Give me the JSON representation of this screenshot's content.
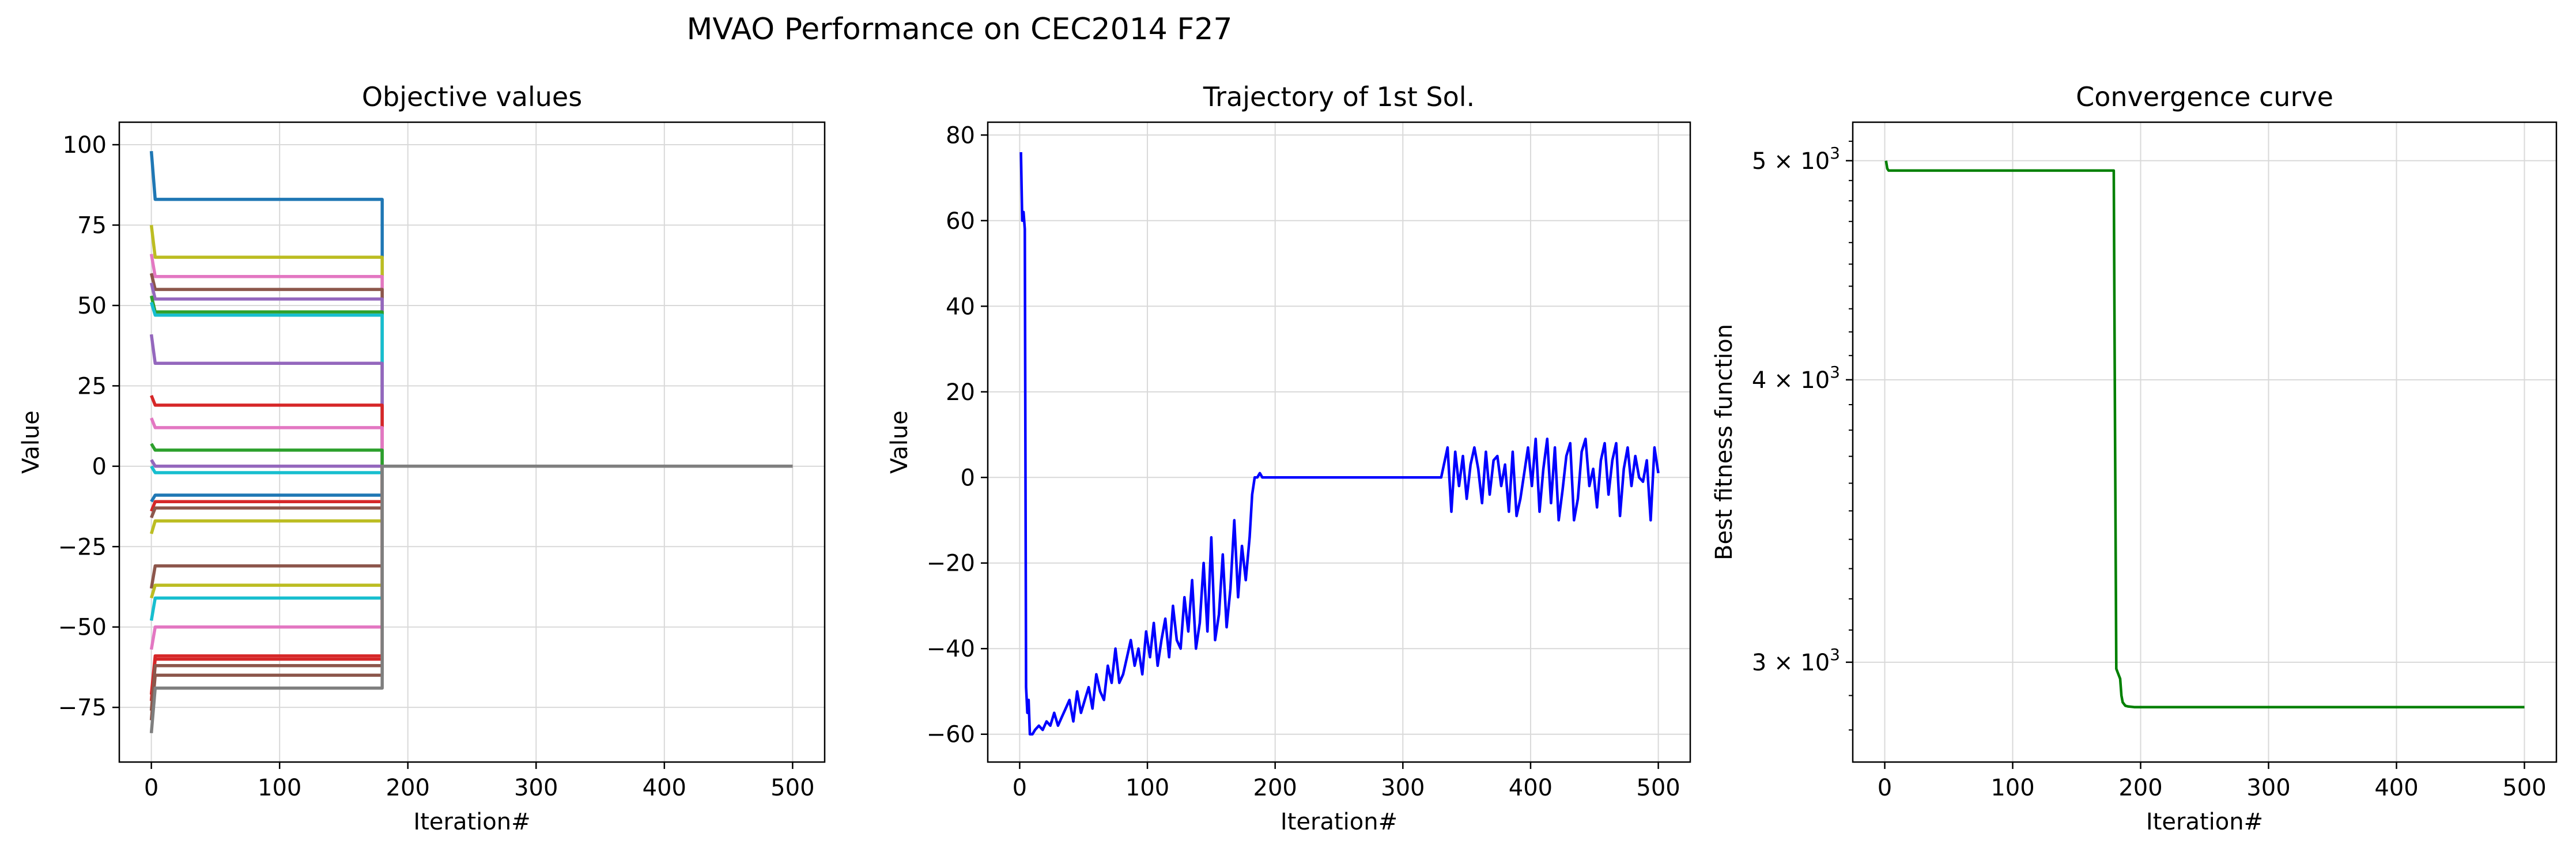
{
  "figure": {
    "title": "MVAO Performance on CEC2014 F27"
  },
  "chart_data": [
    {
      "type": "line",
      "title": "Objective values",
      "xlabel": "Iteration#",
      "ylabel": "Value",
      "xlim": [
        -25,
        525
      ],
      "ylim": [
        -92,
        107
      ],
      "xticks": [
        0,
        100,
        200,
        300,
        400,
        500
      ],
      "yticks": [
        -75,
        -50,
        -25,
        0,
        25,
        50,
        75,
        100
      ],
      "grid": true,
      "switch_iteration": 180,
      "final_value": 0,
      "end_iteration": 500,
      "series": [
        {
          "start": 98,
          "plateau": 83,
          "color": "#1f77b4"
        },
        {
          "start": 75,
          "plateau": 65,
          "color": "#bcbd22"
        },
        {
          "start": 66,
          "plateau": 59,
          "color": "#e377c2"
        },
        {
          "start": 60,
          "plateau": 55,
          "color": "#8c564b"
        },
        {
          "start": 57,
          "plateau": 52,
          "color": "#9467bd"
        },
        {
          "start": 53,
          "plateau": 48,
          "color": "#2ca02c"
        },
        {
          "start": 51,
          "plateau": 47,
          "color": "#17becf"
        },
        {
          "start": 41,
          "plateau": 32,
          "color": "#9467bd"
        },
        {
          "start": 22,
          "plateau": 19,
          "color": "#d62728"
        },
        {
          "start": 15,
          "plateau": 12,
          "color": "#e377c2"
        },
        {
          "start": 7,
          "plateau": 5,
          "color": "#2ca02c"
        },
        {
          "start": 2,
          "plateau": 0,
          "color": "#9467bd"
        },
        {
          "start": 0,
          "plateau": -2,
          "color": "#17becf"
        },
        {
          "start": -11,
          "plateau": -9,
          "color": "#1f77b4"
        },
        {
          "start": -14,
          "plateau": -11,
          "color": "#d62728"
        },
        {
          "start": -16,
          "plateau": -13,
          "color": "#8c564b"
        },
        {
          "start": -21,
          "plateau": -17,
          "color": "#bcbd22"
        },
        {
          "start": -38,
          "plateau": -31,
          "color": "#8c564b"
        },
        {
          "start": -41,
          "plateau": -37,
          "color": "#bcbd22"
        },
        {
          "start": -48,
          "plateau": -41,
          "color": "#17becf"
        },
        {
          "start": -57,
          "plateau": -50,
          "color": "#e377c2"
        },
        {
          "start": -71,
          "plateau": -59,
          "color": "#d62728"
        },
        {
          "start": -73,
          "plateau": -60,
          "color": "#d62728"
        },
        {
          "start": -76,
          "plateau": -62,
          "color": "#8c564b"
        },
        {
          "start": -79,
          "plateau": -65,
          "color": "#8c564b"
        },
        {
          "start": -83,
          "plateau": -69,
          "color": "#7f7f7f"
        }
      ]
    },
    {
      "type": "line",
      "title": "Trajectory of 1st Sol.",
      "xlabel": "Iteration#",
      "ylabel": "Value",
      "xlim": [
        -25,
        525
      ],
      "ylim": [
        -66.5,
        83
      ],
      "xticks": [
        0,
        100,
        200,
        300,
        400,
        500
      ],
      "yticks": [
        -60,
        -40,
        -20,
        0,
        20,
        40,
        60,
        80
      ],
      "grid": true,
      "color": "#0000ff",
      "x": [
        1,
        2,
        3,
        4,
        5,
        6,
        7,
        8,
        10,
        12,
        15,
        18,
        21,
        24,
        27,
        30,
        33,
        36,
        39,
        42,
        45,
        48,
        51,
        54,
        57,
        60,
        63,
        66,
        69,
        72,
        75,
        78,
        81,
        84,
        87,
        90,
        93,
        96,
        99,
        102,
        105,
        108,
        111,
        114,
        117,
        120,
        123,
        126,
        129,
        132,
        135,
        138,
        141,
        144,
        147,
        150,
        153,
        156,
        159,
        162,
        165,
        168,
        171,
        174,
        177,
        180,
        182,
        184,
        186,
        188,
        190,
        195,
        200,
        210,
        220,
        230,
        240,
        250,
        260,
        270,
        280,
        290,
        300,
        310,
        320,
        330,
        335,
        338,
        341,
        344,
        347,
        350,
        353,
        356,
        359,
        362,
        365,
        368,
        371,
        374,
        377,
        380,
        383,
        386,
        389,
        392,
        395,
        398,
        401,
        404,
        407,
        410,
        413,
        416,
        419,
        422,
        425,
        428,
        431,
        434,
        437,
        440,
        443,
        446,
        449,
        452,
        455,
        458,
        461,
        464,
        467,
        470,
        473,
        476,
        479,
        482,
        485,
        488,
        491,
        494,
        497,
        500
      ],
      "y": [
        76,
        60,
        62,
        58,
        -49,
        -55,
        -52,
        -60,
        -60,
        -59,
        -58,
        -59,
        -57,
        -58,
        -55,
        -58,
        -56,
        -54,
        -52,
        -57,
        -50,
        -55,
        -52,
        -49,
        -54,
        -46,
        -50,
        -52,
        -44,
        -48,
        -40,
        -48,
        -46,
        -42,
        -38,
        -44,
        -40,
        -46,
        -36,
        -42,
        -34,
        -44,
        -38,
        -33,
        -42,
        -30,
        -38,
        -40,
        -28,
        -36,
        -24,
        -40,
        -34,
        -20,
        -36,
        -14,
        -38,
        -32,
        -18,
        -35,
        -26,
        -10,
        -28,
        -16,
        -24,
        -14,
        -4,
        0,
        0,
        1,
        0,
        0,
        0,
        0,
        0,
        0,
        0,
        0,
        0,
        0,
        0,
        0,
        0,
        0,
        0,
        0,
        7,
        -8,
        6,
        -2,
        5,
        -5,
        3,
        7,
        2,
        -6,
        6,
        -4,
        4,
        5,
        -2,
        3,
        -8,
        6,
        -9,
        -5,
        1,
        7,
        -2,
        9,
        -8,
        2,
        9,
        -6,
        7,
        -10,
        -3,
        5,
        8,
        -10,
        -5,
        6,
        9,
        -2,
        2,
        -7,
        4,
        8,
        -4,
        4,
        8,
        -9,
        2,
        7,
        -2,
        5,
        0,
        -1,
        4,
        -10,
        7,
        1
      ]
    },
    {
      "type": "line",
      "title": "Convergence curve",
      "xlabel": "Iteration#",
      "ylabel": "Best fitness function",
      "yscale": "log",
      "xlim": [
        -25,
        525
      ],
      "ylim": [
        2710,
        5200
      ],
      "xticks": [
        0,
        100,
        200,
        300,
        400,
        500
      ],
      "yticks": [
        {
          "value": 3000,
          "base": "3 × 10",
          "exp": "3"
        },
        {
          "value": 4000,
          "base": "4 × 10",
          "exp": "3"
        },
        {
          "value": 5000,
          "base": "5 × 10",
          "exp": "3"
        }
      ],
      "grid": true,
      "color": "#008000",
      "x": [
        1,
        2,
        3,
        4,
        5,
        100,
        179,
        180,
        181,
        182,
        184,
        185,
        186,
        188,
        190,
        195,
        200,
        300,
        400,
        500
      ],
      "y": [
        5000,
        4960,
        4950,
        4950,
        4950,
        4950,
        4950,
        3800,
        2980,
        2970,
        2950,
        2900,
        2880,
        2870,
        2868,
        2866,
        2866,
        2866,
        2866,
        2866
      ]
    }
  ]
}
